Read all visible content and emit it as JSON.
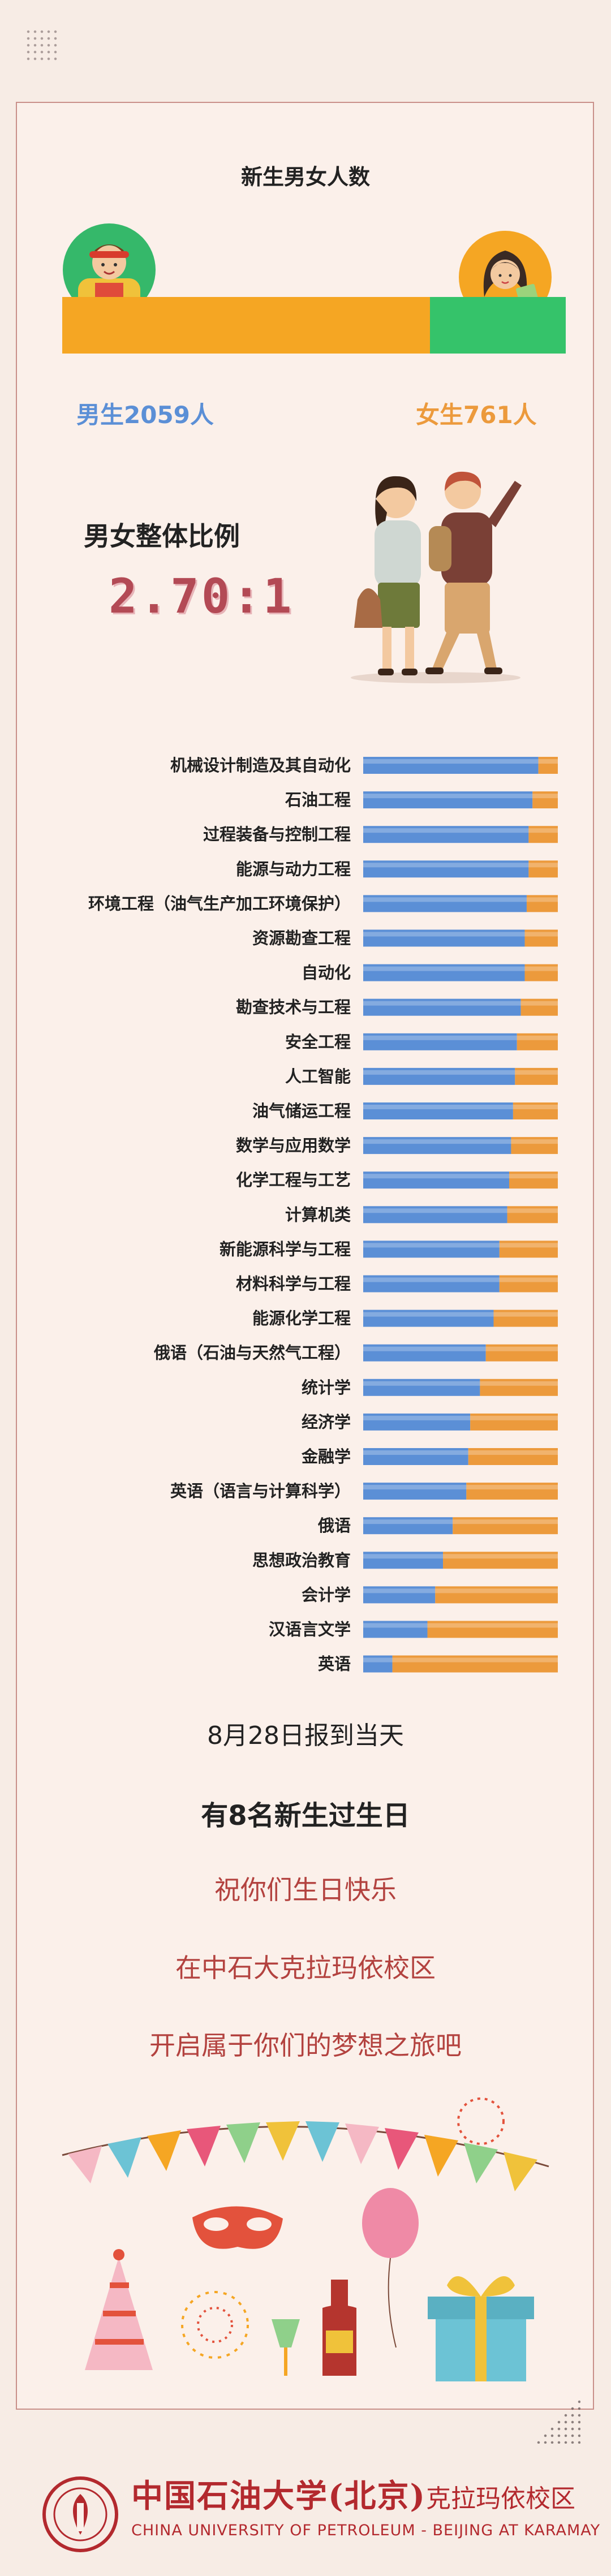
{
  "gender": {
    "title": "新生男女人数",
    "male_label": "男生2059人",
    "female_label": "女生761人",
    "male": 2059,
    "female": 761,
    "male_color": "#f5a623",
    "female_color": "#35c36a"
  },
  "ratio": {
    "title": "男女整体比例",
    "value": "2.70:1"
  },
  "chart_data": {
    "type": "bar",
    "orientation": "horizontal",
    "stacked": true,
    "categories": [
      "机械设计制造及其自动化",
      "石油工程",
      "过程装备与控制工程",
      "能源与动力工程",
      "环境工程（油气生产加工环境保护）",
      "资源勘查工程",
      "自动化",
      "勘查技术与工程",
      "安全工程",
      "人工智能",
      "油气储运工程",
      "数学与应用数学",
      "化学工程与工艺",
      "计算机类",
      "新能源科学与工程",
      "材料科学与工程",
      "能源化学工程",
      "俄语（石油与天然气工程）",
      "统计学",
      "经济学",
      "金融学",
      "英语（语言与计算科学）",
      "俄语",
      "思想政治教育",
      "会计学",
      "汉语言文学",
      "英语"
    ],
    "series": [
      {
        "values": [
          0.9,
          0.87,
          0.85,
          0.85,
          0.84,
          0.83,
          0.83,
          0.81,
          0.79,
          0.78,
          0.77,
          0.76,
          0.75,
          0.74,
          0.7,
          0.7,
          0.67,
          0.63,
          0.6,
          0.55,
          0.54,
          0.53,
          0.46,
          0.41,
          0.37,
          0.33,
          0.15
        ],
        "color": "#5b8fd6"
      },
      {
        "values": [
          0.1,
          0.13,
          0.15,
          0.15,
          0.16,
          0.17,
          0.17,
          0.19,
          0.21,
          0.22,
          0.23,
          0.24,
          0.25,
          0.26,
          0.3,
          0.3,
          0.33,
          0.37,
          0.4,
          0.45,
          0.46,
          0.47,
          0.54,
          0.59,
          0.63,
          0.67,
          0.85
        ],
        "color": "#ec9a3c"
      }
    ],
    "xlim": [
      0,
      1
    ]
  },
  "closing": {
    "report_day": "8月28日报到当天",
    "birthday_count": "有8名新生过生日",
    "wish_1": "祝你们生日快乐",
    "wish_2": "在中石大克拉玛依校区",
    "wish_3": "开启属于你们的梦想之旅吧"
  },
  "footer": {
    "name_main": "中国石油大学(北京)",
    "name_campus": "克拉玛依校区",
    "name_en": "CHINA UNIVERSITY OF PETROLEUM - BEIJING  AT KARAMAY"
  }
}
